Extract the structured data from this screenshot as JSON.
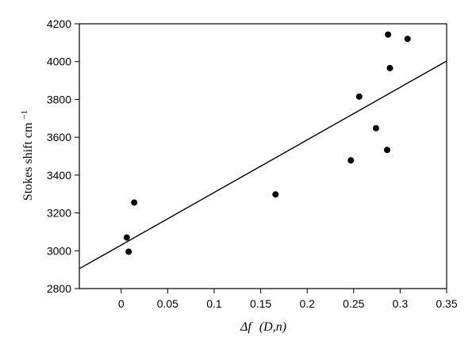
{
  "chart_data": {
    "type": "scatter",
    "xlabel_symbol": "Δf",
    "xlabel_args": "(D,n)",
    "ylabel_main": "Stokes shift cm",
    "ylabel_sup": "−1",
    "xlim": [
      -0.045,
      0.35
    ],
    "ylim": [
      2800,
      4200
    ],
    "x_ticks": [
      0,
      0.05,
      0.1,
      0.15,
      0.2,
      0.25,
      0.3,
      0.35
    ],
    "x_tick_labels": [
      "0",
      "0.05",
      "0.1",
      "0.15",
      "0.2",
      "0.25",
      "0.3",
      "0.35"
    ],
    "y_ticks": [
      2800,
      3000,
      3200,
      3400,
      3600,
      3800,
      4000,
      4200
    ],
    "y_tick_labels": [
      "2800",
      "3000",
      "3200",
      "3400",
      "3600",
      "3800",
      "4000",
      "4200"
    ],
    "grid": false,
    "points": [
      {
        "x": 0.006,
        "y": 3070
      },
      {
        "x": 0.008,
        "y": 2995
      },
      {
        "x": 0.014,
        "y": 3255
      },
      {
        "x": 0.166,
        "y": 3298
      },
      {
        "x": 0.247,
        "y": 3478
      },
      {
        "x": 0.256,
        "y": 3815
      },
      {
        "x": 0.274,
        "y": 3648
      },
      {
        "x": 0.286,
        "y": 3533
      },
      {
        "x": 0.287,
        "y": 4143
      },
      {
        "x": 0.289,
        "y": 3966
      },
      {
        "x": 0.308,
        "y": 4120
      }
    ],
    "fit_line": {
      "x": [
        -0.045,
        0.35
      ],
      "y": [
        2905,
        4003
      ]
    }
  }
}
